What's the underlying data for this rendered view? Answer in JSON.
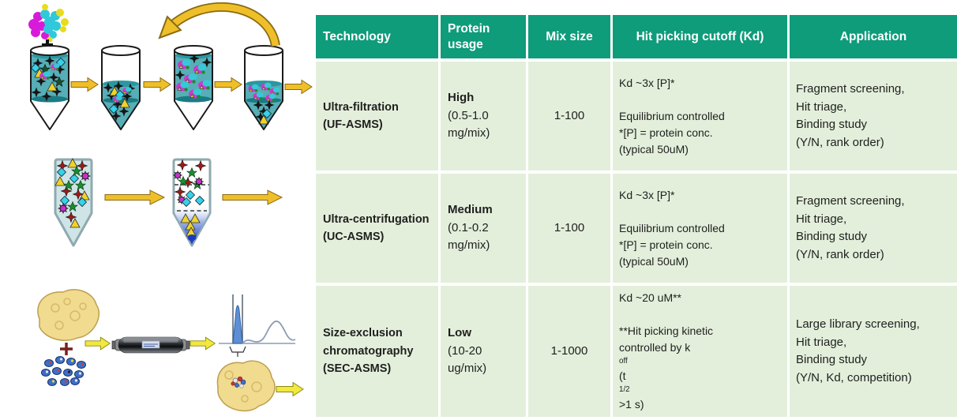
{
  "colors": {
    "header_bg": "#0E9C7B",
    "row_bg": "#E3EFDB",
    "body_text": "#1F1F1F",
    "arrow_gold": "#EFBF2A",
    "arrow_yellow": "#F2E83E",
    "liquid_teal": "#57AEB6"
  },
  "table": {
    "headers": [
      "Technology",
      "Protein usage",
      "Mix size",
      "Hit picking cutoff (Kd)",
      "Application"
    ],
    "rows": [
      {
        "technology": "Ultra-filtration\n(UF-ASMS)",
        "usage_level": "High",
        "usage_detail": "(0.5-1.0 mg/mix)",
        "mix_size": "1-100",
        "cutoff": "Kd ~3x [P]*\n\nEquilibrium controlled\n*[P] = protein conc.\n(typical 50uM)",
        "application": "Fragment screening,\nHit triage,\nBinding study\n(Y/N, rank order)"
      },
      {
        "technology": "Ultra-centrifugation\n(UC-ASMS)",
        "usage_level": "Medium",
        "usage_detail": "(0.1-0.2 mg/mix)",
        "mix_size": "1-100",
        "cutoff": "Kd ~3x [P]*\n\nEquilibrium controlled\n*[P] = protein conc.\n(typical 50uM)",
        "application": "Fragment screening,\nHit triage,\nBinding study\n(Y/N, rank order)"
      },
      {
        "technology": "Size-exclusion chromatography\n(SEC-ASMS)",
        "usage_level": "Low",
        "usage_detail": "(10-20 ug/mix)",
        "mix_size": "1-1000",
        "cutoff": "Kd ~20 uM**\n\n**Hit picking kinetic\ncontrolled by k[sub]off[/sub] (t[sub]1/2[/sub] >1 s)",
        "application": "Large library screening,\nHit triage,\nBinding study\n(Y/N, Kd, competition)"
      }
    ]
  }
}
